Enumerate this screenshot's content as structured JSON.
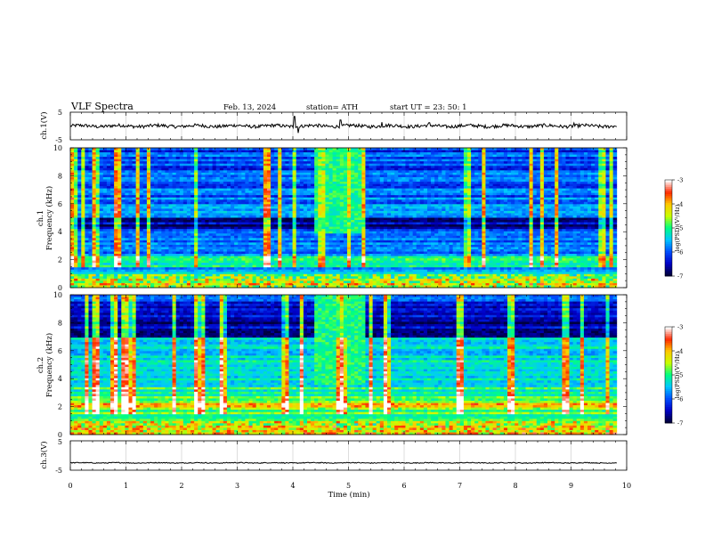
{
  "header": {
    "title": "VLF  Spectra",
    "date": "Feb. 13, 2024",
    "station": "station= ATH",
    "start": "start  UT  =    23: 50: 1"
  },
  "colors": {
    "colormap": [
      "#00003c",
      "#0000c8",
      "#0050ff",
      "#00c8ff",
      "#00ff80",
      "#c8ff00",
      "#ffc800",
      "#ff2800",
      "#ffffff"
    ],
    "trace": "#000000",
    "frame": "#000000"
  },
  "chart_data": [
    {
      "type": "line",
      "name": "ch1-waveform",
      "ylabel": "ch.1(V)",
      "ylim": [
        -5,
        5
      ],
      "yticks": [
        "5",
        "-5"
      ],
      "xlim": [
        0,
        10
      ],
      "x_end": 9.82,
      "baseline": 0,
      "amplitude_approx": 0.6,
      "spikes": [
        {
          "x": 4.03,
          "y": 3.5
        },
        {
          "x": 4.1,
          "y": -2.5
        },
        {
          "x": 4.86,
          "y": 2.2
        },
        {
          "x": 5.6,
          "y": 1.4
        },
        {
          "x": 6.45,
          "y": 1.2
        },
        {
          "x": 9.05,
          "y": 1.1
        }
      ],
      "grid": true
    },
    {
      "type": "heatmap",
      "name": "ch1-spectrogram",
      "ylabel": "ch.1\nFrequency  (kHz)",
      "xlim": [
        0,
        10
      ],
      "x_end": 9.82,
      "ylim": [
        0,
        10
      ],
      "yticks": [
        "0",
        "2",
        "4",
        "6",
        "8",
        "10"
      ],
      "colorbar": {
        "label": "log(PSD)(V²/Hz)",
        "range": [
          -7,
          -3
        ],
        "ticks": [
          "-3",
          "-4",
          "-5",
          "-6",
          "-7"
        ]
      },
      "features": {
        "bright_band_khz": [
          1.5,
          2.3
        ],
        "dark_band_khz": [
          4.2,
          5.0
        ],
        "event_min": [
          4.4,
          5.3
        ],
        "event_freq_khz": [
          3.9,
          10
        ]
      }
    },
    {
      "type": "heatmap",
      "name": "ch2-spectrogram",
      "ylabel": "ch.2\nFrequency  (kHz)",
      "xlim": [
        0,
        10
      ],
      "x_end": 9.82,
      "ylim": [
        0,
        10
      ],
      "yticks": [
        "0",
        "2",
        "4",
        "6",
        "8",
        "10"
      ],
      "colorbar": {
        "label": "log(PSD)(V²/Hz)",
        "range": [
          -7,
          -3
        ],
        "ticks": [
          "-3",
          "-4",
          "-5",
          "-6",
          "-7"
        ]
      },
      "features": {
        "bright_band_khz": [
          1.8,
          2.3
        ],
        "dark_band_khz": [
          7.0,
          9.5
        ],
        "event_min": [
          4.4,
          5.3
        ],
        "event_freq_khz": [
          3.5,
          10
        ]
      }
    },
    {
      "type": "line",
      "name": "ch3-waveform",
      "ylabel": "ch.3(V)",
      "ylim": [
        -5,
        5
      ],
      "yticks": [
        "5",
        "-5"
      ],
      "xlim": [
        0,
        10
      ],
      "x_end": 9.82,
      "baseline": -2.5,
      "amplitude_approx": 0.15,
      "grid": true
    }
  ],
  "x_axis": {
    "label": "Time  (min)",
    "ticks": [
      "0",
      "1",
      "2",
      "3",
      "4",
      "5",
      "6",
      "7",
      "8",
      "9",
      "10"
    ],
    "range": [
      0,
      10
    ]
  }
}
